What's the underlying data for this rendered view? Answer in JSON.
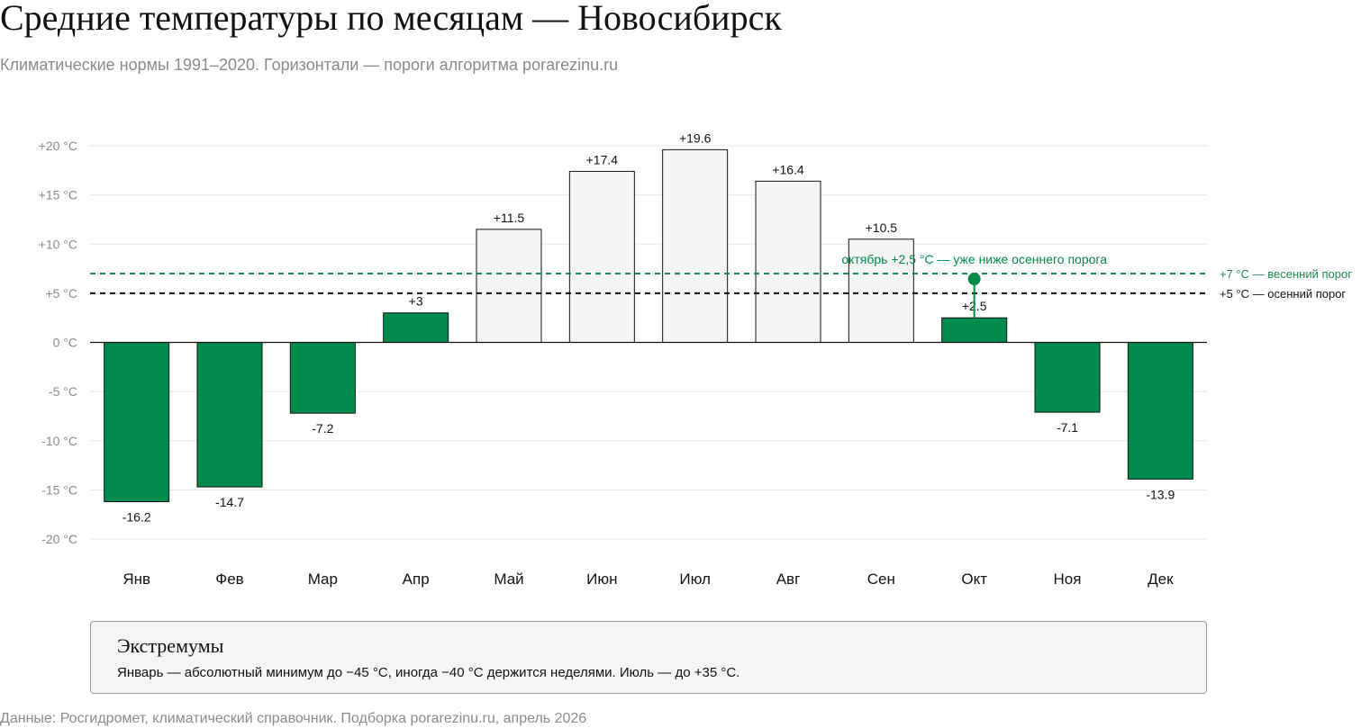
{
  "header": {
    "title": "Средние температуры по месяцам — Новосибирск",
    "subtitle": "Климатические нормы 1991–2020. Горизонтали — пороги алгоритма porarezinu.ru"
  },
  "chart_data": {
    "type": "bar",
    "categories": [
      "Янв",
      "Фев",
      "Мар",
      "Апр",
      "Май",
      "Июн",
      "Июл",
      "Авг",
      "Сен",
      "Окт",
      "Ноя",
      "Дек"
    ],
    "values": [
      -16.2,
      -14.7,
      -7.2,
      3,
      11.5,
      17.4,
      19.6,
      16.4,
      10.5,
      2.5,
      -7.1,
      -13.9
    ],
    "value_labels": [
      "-16.2",
      "-14.7",
      "-7.2",
      "+3",
      "+11.5",
      "+17.4",
      "+19.6",
      "+16.4",
      "+10.5",
      "+2.5",
      "-7.1",
      "-13.9"
    ],
    "ylim": [
      -20,
      20
    ],
    "yticks": [
      20,
      15,
      10,
      5,
      0,
      -5,
      -10,
      -15,
      -20
    ],
    "ytick_labels": [
      "+20 °C",
      "+15 °C",
      "+10 °C",
      "+5 °C",
      "0 °C",
      "-5 °C",
      "-10 °C",
      "-15 °C",
      "-20 °C"
    ],
    "grid": true,
    "bar_styles": {
      "below_threshold": {
        "fill": "#008a4b",
        "stroke": "#111111"
      },
      "above_threshold": {
        "fill": "#f4f4f4",
        "stroke": "#111111"
      }
    },
    "reference_lines": [
      {
        "value": 7,
        "label": "+7 °C — весенний порог",
        "color": "#1a8a4f",
        "style": "dashed"
      },
      {
        "value": 5,
        "label": "+5 °C — осенний порог",
        "color": "#111111",
        "style": "dashed"
      }
    ],
    "annotations": [
      {
        "category": "Окт",
        "value": 7,
        "text": "октябрь +2,5 °C — уже ниже осеннего порога",
        "color": "#008a4b"
      }
    ]
  },
  "note": {
    "title": "Экстремумы",
    "text": "Январь — абсолютный минимум до −45 °C, иногда −40 °C держится неделями. Июль — до +35 °C."
  },
  "footer": {
    "source": "Данные: Росгидромет, климатический справочник. Подборка porarezinu.ru, апрель 2026"
  }
}
